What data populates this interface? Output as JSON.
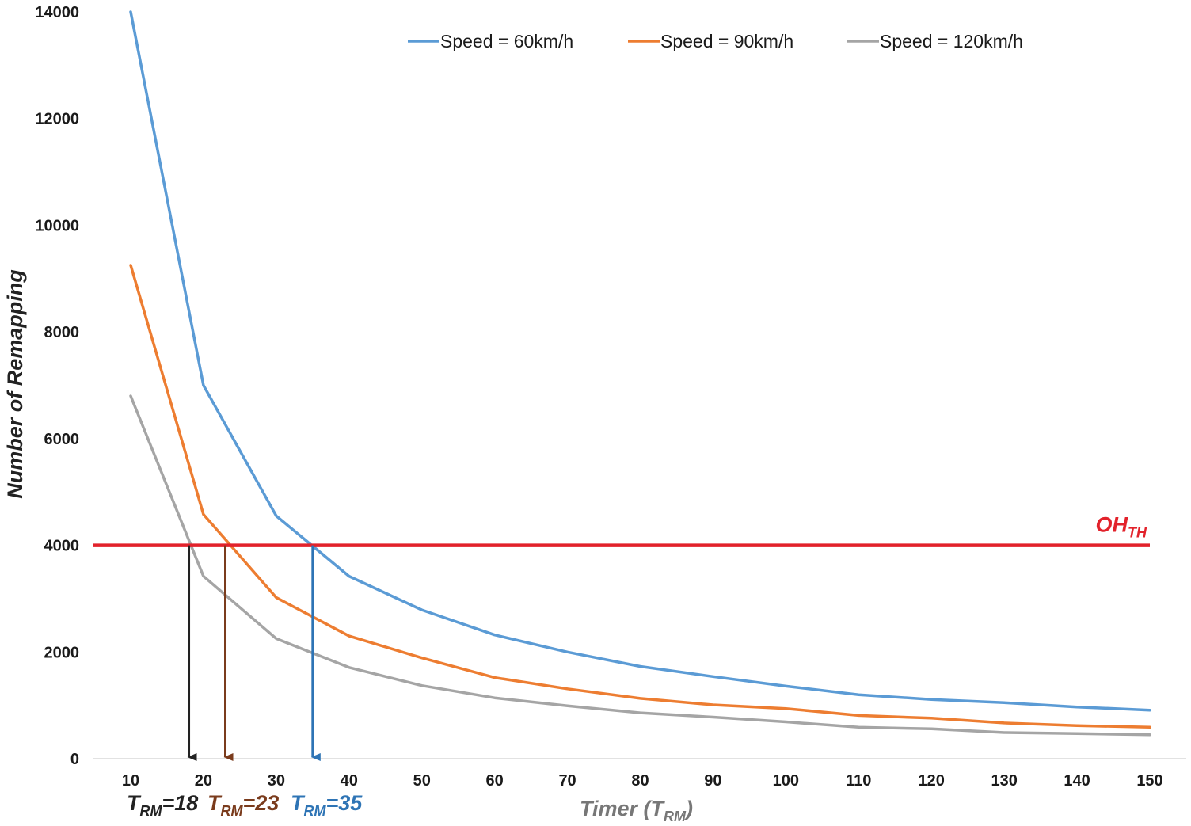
{
  "chart_data": {
    "type": "line",
    "x": [
      10,
      20,
      30,
      40,
      50,
      60,
      70,
      80,
      90,
      100,
      110,
      120,
      130,
      140,
      150
    ],
    "series": [
      {
        "name": "Speed = 60km/h",
        "color": "#5b9bd5",
        "values": [
          14000,
          7000,
          4550,
          3420,
          2790,
          2320,
          2000,
          1730,
          1540,
          1360,
          1200,
          1110,
          1050,
          970,
          910
        ]
      },
      {
        "name": "Speed = 90km/h",
        "color": "#ed7d31",
        "values": [
          9250,
          4580,
          3020,
          2300,
          1890,
          1520,
          1310,
          1130,
          1010,
          940,
          810,
          760,
          670,
          620,
          590
        ]
      },
      {
        "name": "Speed = 120km/h",
        "color": "#a5a5a5",
        "values": [
          6800,
          3420,
          2250,
          1710,
          1370,
          1140,
          990,
          860,
          780,
          690,
          590,
          560,
          490,
          470,
          450
        ]
      }
    ],
    "xlabel": {
      "main": "Timer (T",
      "sub": "RM",
      "tail": ")"
    },
    "ylabel": "Number of Remapping",
    "ylim": [
      0,
      14000
    ],
    "yticks": [
      0,
      2000,
      4000,
      6000,
      8000,
      10000,
      12000,
      14000
    ],
    "threshold": {
      "value": 4000,
      "color": "#e2222b",
      "label_main": "OH",
      "label_sub": "TH"
    },
    "markers": [
      {
        "x": 18,
        "color": "#222222",
        "label_main": "T",
        "label_sub": "RM",
        "label_tail": "=18"
      },
      {
        "x": 23,
        "color": "#7a3b1c",
        "label_main": "T",
        "label_sub": "RM",
        "label_tail": "=23"
      },
      {
        "x": 35,
        "color": "#2e74b5",
        "label_main": "T",
        "label_sub": "RM",
        "label_tail": "=35"
      }
    ],
    "legend_position": "top",
    "grid": false
  }
}
